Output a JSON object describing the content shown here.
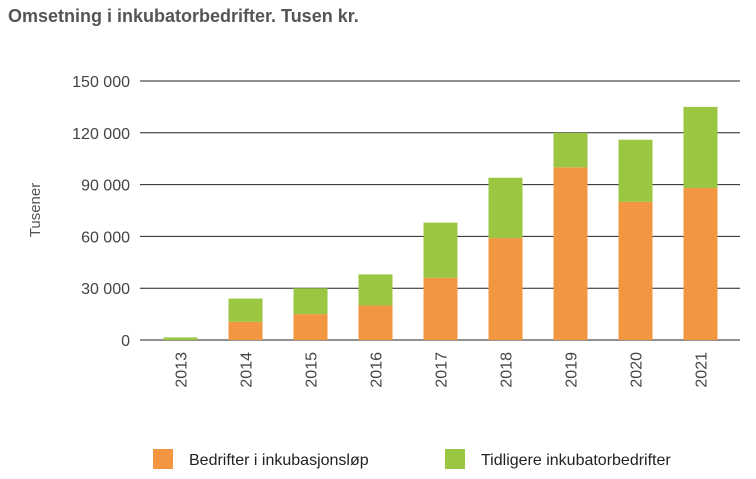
{
  "chart_data": {
    "type": "bar",
    "stacked": true,
    "title": "Omsetning i inkubatorbedrifter. Tusen kr.",
    "ylabel": "Tusener",
    "xlabel": "",
    "categories": [
      "2013",
      "2014",
      "2015",
      "2016",
      "2017",
      "2018",
      "2019",
      "2020",
      "2021"
    ],
    "series": [
      {
        "name": "Bedrifter i inkubasjonsløp",
        "values": [
          0,
          10500,
          15000,
          20000,
          36000,
          59000,
          100000,
          80000,
          88000
        ],
        "color": "#F39642"
      },
      {
        "name": "Tidligere inkubatorbedrifter",
        "values": [
          1500,
          13500,
          15000,
          18000,
          32000,
          35000,
          20000,
          36000,
          47000
        ],
        "color": "#9BC642"
      }
    ],
    "yticks": [
      "0",
      "30 000",
      "60 000",
      "90 000",
      "120 000",
      "150 000"
    ],
    "ytick_values": [
      0,
      30000,
      60000,
      90000,
      120000,
      150000
    ],
    "ylim": [
      0,
      150000
    ],
    "grid": true,
    "legend_position": "bottom"
  }
}
